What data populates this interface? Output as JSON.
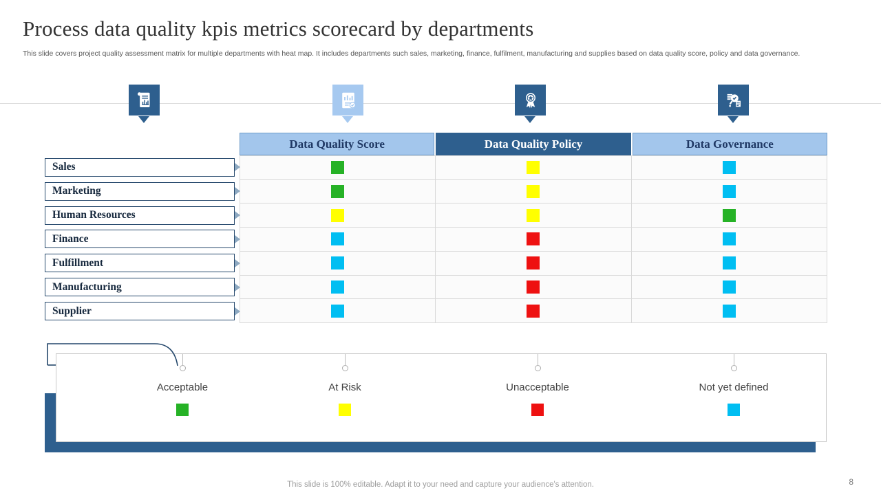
{
  "slide": {
    "title": "Process data quality kpis metrics scorecard by departments",
    "subtitle": "This slide covers project quality assessment matrix for multiple departments with heat map. It includes departments such sales, marketing, finance, fulfilment, manufacturing and supplies based on data quality score, policy and data governance.",
    "footer_note": "This slide is 100% editable. Adapt it to your need and capture your audience's attention.",
    "page_number": "8"
  },
  "icons": [
    {
      "name": "report-icon",
      "style": "dark"
    },
    {
      "name": "chart-check-icon",
      "style": "light"
    },
    {
      "name": "award-icon",
      "style": "dark"
    },
    {
      "name": "audit-icon",
      "style": "dark"
    }
  ],
  "colors": {
    "dark_blue": "#2E5F8E",
    "light_blue": "#A3C6EC",
    "acceptable": "#26B226",
    "at_risk": "#FFFF00",
    "unacceptable": "#EE1111",
    "not_yet_defined": "#00BEF2"
  },
  "matrix": {
    "columns": [
      "Data Quality Score",
      "Data Quality Policy",
      "Data Governance"
    ],
    "rows": [
      {
        "label": "Sales",
        "values": [
          "acceptable",
          "at_risk",
          "not_yet_defined"
        ]
      },
      {
        "label": "Marketing",
        "values": [
          "acceptable",
          "at_risk",
          "not_yet_defined"
        ]
      },
      {
        "label": "Human Resources",
        "values": [
          "at_risk",
          "at_risk",
          "acceptable"
        ]
      },
      {
        "label": "Finance",
        "values": [
          "not_yet_defined",
          "unacceptable",
          "not_yet_defined"
        ]
      },
      {
        "label": "Fulfillment",
        "values": [
          "not_yet_defined",
          "unacceptable",
          "not_yet_defined"
        ]
      },
      {
        "label": "Manufacturing",
        "values": [
          "not_yet_defined",
          "unacceptable",
          "not_yet_defined"
        ]
      },
      {
        "label": "Supplier",
        "values": [
          "not_yet_defined",
          "unacceptable",
          "not_yet_defined"
        ]
      }
    ]
  },
  "legend": [
    {
      "label": "Acceptable",
      "key": "acceptable"
    },
    {
      "label": "At Risk",
      "key": "at_risk"
    },
    {
      "label": "Unacceptable",
      "key": "unacceptable"
    },
    {
      "label": "Not yet defined",
      "key": "not_yet_defined"
    }
  ],
  "chart_data": {
    "type": "heatmap",
    "title": "Process data quality kpis metrics scorecard by departments",
    "x_categories": [
      "Data Quality Score",
      "Data Quality Policy",
      "Data Governance"
    ],
    "y_categories": [
      "Sales",
      "Marketing",
      "Human Resources",
      "Finance",
      "Fulfillment",
      "Manufacturing",
      "Supplier"
    ],
    "values": [
      [
        "Acceptable",
        "At Risk",
        "Not yet defined"
      ],
      [
        "Acceptable",
        "At Risk",
        "Not yet defined"
      ],
      [
        "At Risk",
        "At Risk",
        "Acceptable"
      ],
      [
        "Not yet defined",
        "Unacceptable",
        "Not yet defined"
      ],
      [
        "Not yet defined",
        "Unacceptable",
        "Not yet defined"
      ],
      [
        "Not yet defined",
        "Unacceptable",
        "Not yet defined"
      ],
      [
        "Not yet defined",
        "Unacceptable",
        "Not yet defined"
      ]
    ],
    "legend": [
      {
        "label": "Acceptable",
        "color": "#26B226"
      },
      {
        "label": "At Risk",
        "color": "#FFFF00"
      },
      {
        "label": "Unacceptable",
        "color": "#EE1111"
      },
      {
        "label": "Not yet defined",
        "color": "#00BEF2"
      }
    ],
    "legend_position": "bottom",
    "grid": true
  }
}
